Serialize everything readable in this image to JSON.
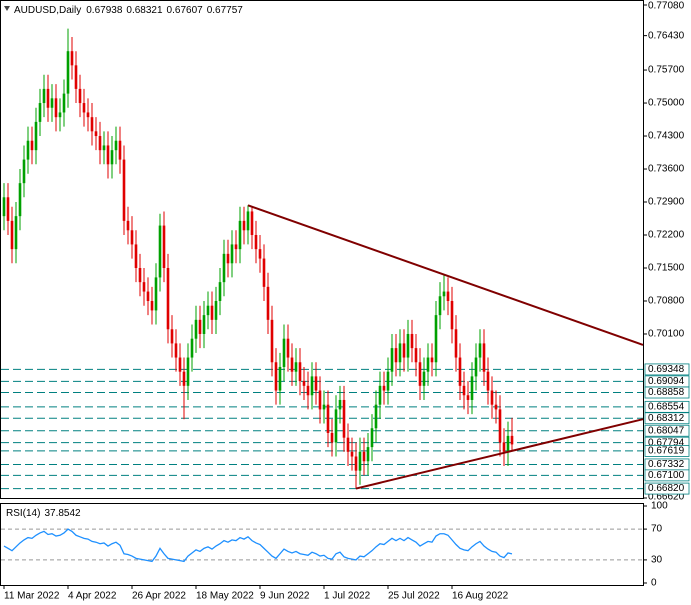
{
  "chart_data": {
    "type": "candlestick",
    "symbol": "AUDUSD,Daily",
    "up_color": "#00a000",
    "down_color": "#e00000",
    "ylim": [
      0.6662,
      0.7708
    ],
    "yticks": [
      {
        "value": 0.7708,
        "label": "0.77080"
      },
      {
        "value": 0.7643,
        "label": "0.76430"
      },
      {
        "value": 0.757,
        "label": "0.75700"
      },
      {
        "value": 0.75,
        "label": "0.75000"
      },
      {
        "value": 0.743,
        "label": "0.74300"
      },
      {
        "value": 0.736,
        "label": "0.73600"
      },
      {
        "value": 0.729,
        "label": "0.72900"
      },
      {
        "value": 0.722,
        "label": "0.72200"
      },
      {
        "value": 0.715,
        "label": "0.71500"
      },
      {
        "value": 0.708,
        "label": "0.70800"
      },
      {
        "value": 0.701,
        "label": "0.70100"
      },
      {
        "value": 0.6662,
        "label": "0.66620"
      }
    ],
    "level_color": "#008080",
    "levels": [
      {
        "value": 0.69348,
        "label": "0.69348"
      },
      {
        "value": 0.69094,
        "label": "0.69094"
      },
      {
        "value": 0.68858,
        "label": "0.68858"
      },
      {
        "value": 0.68554,
        "label": "0.68554"
      },
      {
        "value": 0.68312,
        "label": "0.68312"
      },
      {
        "value": 0.68047,
        "label": "0.68047"
      },
      {
        "value": 0.67794,
        "label": "0.67794"
      },
      {
        "value": 0.67619,
        "label": "0.67619"
      },
      {
        "value": 0.67332,
        "label": "0.67332"
      },
      {
        "value": 0.671,
        "label": "0.67100"
      },
      {
        "value": 0.6682,
        "label": "0.66820"
      }
    ],
    "trendline_color": "#800000",
    "trendlines": [
      {
        "points": [
          [
            61,
            0.7283
          ],
          [
            110,
            0.7136
          ]
        ]
      },
      {
        "points": [
          [
            88,
            0.6682
          ],
          [
            127,
            0.6762
          ]
        ]
      }
    ],
    "x_labels": [
      {
        "index": 0,
        "label": "11 Mar 2022"
      },
      {
        "index": 16,
        "label": "4 Apr 2022"
      },
      {
        "index": 32,
        "label": "26 Apr 2022"
      },
      {
        "index": 48,
        "label": "18 May 2022"
      },
      {
        "index": 64,
        "label": "9 Jun 2022"
      },
      {
        "index": 80,
        "label": "1 Jul 2022"
      },
      {
        "index": 96,
        "label": "25 Jul 2022"
      },
      {
        "index": 112,
        "label": "16 Aug 2022"
      }
    ],
    "ohlc": [
      [
        0.726,
        0.733,
        0.723,
        0.73
      ],
      [
        0.73,
        0.733,
        0.722,
        0.725
      ],
      [
        0.725,
        0.728,
        0.716,
        0.719
      ],
      [
        0.719,
        0.729,
        0.716,
        0.726
      ],
      [
        0.726,
        0.736,
        0.723,
        0.733
      ],
      [
        0.733,
        0.741,
        0.73,
        0.738
      ],
      [
        0.738,
        0.745,
        0.735,
        0.742
      ],
      [
        0.742,
        0.745,
        0.737,
        0.74
      ],
      [
        0.74,
        0.749,
        0.737,
        0.746
      ],
      [
        0.746,
        0.753,
        0.743,
        0.75
      ],
      [
        0.75,
        0.756,
        0.747,
        0.753
      ],
      [
        0.753,
        0.756,
        0.746,
        0.749
      ],
      [
        0.749,
        0.754,
        0.746,
        0.751
      ],
      [
        0.751,
        0.754,
        0.744,
        0.747
      ],
      [
        0.747,
        0.751,
        0.744,
        0.748
      ],
      [
        0.748,
        0.755,
        0.745,
        0.752
      ],
      [
        0.752,
        0.7658,
        0.749,
        0.761
      ],
      [
        0.761,
        0.764,
        0.755,
        0.758
      ],
      [
        0.758,
        0.761,
        0.75,
        0.753
      ],
      [
        0.753,
        0.756,
        0.747,
        0.75
      ],
      [
        0.75,
        0.753,
        0.745,
        0.748
      ],
      [
        0.748,
        0.751,
        0.744,
        0.747
      ],
      [
        0.747,
        0.75,
        0.741,
        0.744
      ],
      [
        0.744,
        0.747,
        0.74,
        0.743
      ],
      [
        0.743,
        0.746,
        0.737,
        0.74
      ],
      [
        0.74,
        0.744,
        0.737,
        0.741
      ],
      [
        0.741,
        0.744,
        0.734,
        0.737
      ],
      [
        0.737,
        0.743,
        0.734,
        0.74
      ],
      [
        0.74,
        0.745,
        0.737,
        0.742
      ],
      [
        0.742,
        0.745,
        0.735,
        0.738
      ],
      [
        0.738,
        0.741,
        0.722,
        0.725
      ],
      [
        0.725,
        0.728,
        0.72,
        0.723
      ],
      [
        0.723,
        0.726,
        0.717,
        0.72
      ],
      [
        0.72,
        0.723,
        0.712,
        0.715
      ],
      [
        0.715,
        0.718,
        0.709,
        0.712
      ],
      [
        0.712,
        0.715,
        0.707,
        0.71
      ],
      [
        0.71,
        0.713,
        0.705,
        0.708
      ],
      [
        0.708,
        0.711,
        0.703,
        0.706
      ],
      [
        0.706,
        0.716,
        0.703,
        0.713
      ],
      [
        0.713,
        0.7265,
        0.71,
        0.724
      ],
      [
        0.724,
        0.727,
        0.712,
        0.715
      ],
      [
        0.715,
        0.718,
        0.699,
        0.702
      ],
      [
        0.702,
        0.705,
        0.696,
        0.699
      ],
      [
        0.699,
        0.702,
        0.693,
        0.696
      ],
      [
        0.696,
        0.699,
        0.69,
        0.693
      ],
      [
        0.693,
        0.696,
        0.6829,
        0.69
      ],
      [
        0.69,
        0.699,
        0.687,
        0.696
      ],
      [
        0.696,
        0.703,
        0.693,
        0.7
      ],
      [
        0.7,
        0.707,
        0.697,
        0.704
      ],
      [
        0.704,
        0.707,
        0.698,
        0.701
      ],
      [
        0.701,
        0.708,
        0.698,
        0.705
      ],
      [
        0.705,
        0.71,
        0.702,
        0.707
      ],
      [
        0.707,
        0.71,
        0.701,
        0.704
      ],
      [
        0.704,
        0.711,
        0.701,
        0.708
      ],
      [
        0.708,
        0.715,
        0.705,
        0.712
      ],
      [
        0.712,
        0.721,
        0.709,
        0.718
      ],
      [
        0.718,
        0.721,
        0.713,
        0.716
      ],
      [
        0.716,
        0.723,
        0.713,
        0.72
      ],
      [
        0.72,
        0.723,
        0.716,
        0.719
      ],
      [
        0.719,
        0.728,
        0.716,
        0.725
      ],
      [
        0.725,
        0.728,
        0.72,
        0.723
      ],
      [
        0.723,
        0.7283,
        0.72,
        0.727
      ],
      [
        0.727,
        0.728,
        0.719,
        0.722
      ],
      [
        0.722,
        0.725,
        0.716,
        0.719
      ],
      [
        0.719,
        0.722,
        0.714,
        0.717
      ],
      [
        0.717,
        0.72,
        0.708,
        0.711
      ],
      [
        0.711,
        0.714,
        0.701,
        0.704
      ],
      [
        0.704,
        0.707,
        0.692,
        0.695
      ],
      [
        0.695,
        0.698,
        0.686,
        0.689
      ],
      [
        0.689,
        0.697,
        0.686,
        0.694
      ],
      [
        0.694,
        0.703,
        0.691,
        0.7
      ],
      [
        0.7,
        0.703,
        0.693,
        0.696
      ],
      [
        0.696,
        0.699,
        0.69,
        0.693
      ],
      [
        0.693,
        0.698,
        0.69,
        0.695
      ],
      [
        0.695,
        0.698,
        0.688,
        0.691
      ],
      [
        0.691,
        0.694,
        0.687,
        0.69
      ],
      [
        0.69,
        0.693,
        0.685,
        0.688
      ],
      [
        0.688,
        0.695,
        0.685,
        0.692
      ],
      [
        0.692,
        0.695,
        0.686,
        0.689
      ],
      [
        0.689,
        0.692,
        0.682,
        0.685
      ],
      [
        0.685,
        0.689,
        0.682,
        0.686
      ],
      [
        0.686,
        0.689,
        0.677,
        0.68
      ],
      [
        0.68,
        0.683,
        0.675,
        0.678
      ],
      [
        0.678,
        0.688,
        0.675,
        0.685
      ],
      [
        0.685,
        0.69,
        0.682,
        0.687
      ],
      [
        0.687,
        0.69,
        0.676,
        0.679
      ],
      [
        0.679,
        0.682,
        0.673,
        0.676
      ],
      [
        0.676,
        0.679,
        0.672,
        0.675
      ],
      [
        0.675,
        0.678,
        0.6682,
        0.672
      ],
      [
        0.672,
        0.679,
        0.669,
        0.676
      ],
      [
        0.676,
        0.679,
        0.671,
        0.674
      ],
      [
        0.674,
        0.68,
        0.671,
        0.677
      ],
      [
        0.677,
        0.684,
        0.674,
        0.681
      ],
      [
        0.681,
        0.689,
        0.678,
        0.686
      ],
      [
        0.686,
        0.693,
        0.683,
        0.69
      ],
      [
        0.69,
        0.693,
        0.686,
        0.689
      ],
      [
        0.689,
        0.696,
        0.686,
        0.693
      ],
      [
        0.693,
        0.701,
        0.69,
        0.698
      ],
      [
        0.698,
        0.701,
        0.692,
        0.695
      ],
      [
        0.695,
        0.702,
        0.692,
        0.699
      ],
      [
        0.699,
        0.702,
        0.693,
        0.696
      ],
      [
        0.696,
        0.704,
        0.693,
        0.701
      ],
      [
        0.701,
        0.704,
        0.695,
        0.698
      ],
      [
        0.698,
        0.701,
        0.692,
        0.695
      ],
      [
        0.695,
        0.698,
        0.687,
        0.69
      ],
      [
        0.69,
        0.696,
        0.687,
        0.693
      ],
      [
        0.693,
        0.699,
        0.69,
        0.696
      ],
      [
        0.696,
        0.699,
        0.692,
        0.695
      ],
      [
        0.695,
        0.708,
        0.692,
        0.705
      ],
      [
        0.705,
        0.712,
        0.702,
        0.709
      ],
      [
        0.709,
        0.7136,
        0.706,
        0.71
      ],
      [
        0.71,
        0.713,
        0.705,
        0.708
      ],
      [
        0.708,
        0.711,
        0.699,
        0.702
      ],
      [
        0.702,
        0.705,
        0.693,
        0.696
      ],
      [
        0.696,
        0.699,
        0.687,
        0.69
      ],
      [
        0.69,
        0.693,
        0.685,
        0.688
      ],
      [
        0.688,
        0.691,
        0.684,
        0.687
      ],
      [
        0.687,
        0.695,
        0.684,
        0.692
      ],
      [
        0.692,
        0.699,
        0.689,
        0.696
      ],
      [
        0.696,
        0.702,
        0.693,
        0.699
      ],
      [
        0.699,
        0.702,
        0.69,
        0.693
      ],
      [
        0.693,
        0.696,
        0.686,
        0.689
      ],
      [
        0.689,
        0.692,
        0.683,
        0.686
      ],
      [
        0.686,
        0.689,
        0.682,
        0.685
      ],
      [
        0.685,
        0.688,
        0.675,
        0.678
      ],
      [
        0.678,
        0.681,
        0.673,
        0.676
      ],
      [
        0.676,
        0.6824,
        0.673,
        0.67938
      ],
      [
        0.67938,
        0.68321,
        0.67607,
        0.67757
      ]
    ],
    "indicator": {
      "name": "RSI(14)",
      "color": "#1e90ff",
      "ylim": [
        0,
        100
      ],
      "yticks": [
        100,
        70,
        30,
        0
      ],
      "values": [
        48,
        45,
        42,
        47,
        52,
        56,
        59,
        58,
        62,
        65,
        67,
        63,
        64,
        61,
        62,
        65,
        70,
        67,
        62,
        60,
        58,
        57,
        54,
        53,
        51,
        52,
        48,
        51,
        53,
        49,
        38,
        37,
        35,
        32,
        31,
        30,
        29,
        28,
        35,
        45,
        38,
        32,
        31,
        30,
        29,
        28,
        35,
        39,
        43,
        41,
        45,
        47,
        44,
        48,
        51,
        55,
        53,
        56,
        55,
        59,
        57,
        60,
        55,
        52,
        50,
        45,
        40,
        35,
        32,
        38,
        44,
        41,
        39,
        41,
        38,
        37,
        36,
        40,
        38,
        35,
        36,
        32,
        31,
        38,
        40,
        34,
        32,
        31,
        30,
        35,
        34,
        38,
        42,
        47,
        51,
        50,
        54,
        58,
        55,
        58,
        55,
        59,
        56,
        53,
        48,
        51,
        54,
        53,
        61,
        64,
        64,
        62,
        56,
        50,
        45,
        43,
        42,
        47,
        51,
        54,
        48,
        44,
        41,
        40,
        35,
        33,
        39,
        37.8542
      ]
    }
  }
}
